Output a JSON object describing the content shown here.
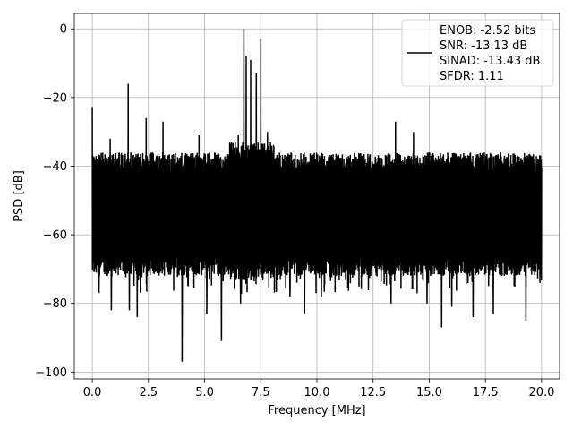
{
  "chart_data": {
    "type": "line",
    "title": "",
    "xlabel": "Frequency [MHz]",
    "ylabel": "PSD [dB]",
    "xlim": [
      -0.8,
      20.8
    ],
    "ylim": [
      -102,
      4.5
    ],
    "grid": true,
    "x_ticks": [
      0.0,
      2.5,
      5.0,
      7.5,
      10.0,
      12.5,
      15.0,
      17.5,
      20.0
    ],
    "x_tick_labels": [
      "0.0",
      "2.5",
      "5.0",
      "7.5",
      "10.0",
      "12.5",
      "15.0",
      "17.5",
      "20.0"
    ],
    "y_ticks": [
      0,
      -20,
      -40,
      -60,
      -80,
      -100
    ],
    "y_tick_labels": [
      "0",
      "−20",
      "−40",
      "−60",
      "−80",
      "−100"
    ],
    "line_color": "#000000",
    "legend": {
      "placement": "upper right",
      "entries": [
        "ENOB: -2.52 bits",
        "SNR: -13.13 dB",
        "SINAD: -13.43 dB",
        "SFDR: 1.11"
      ]
    },
    "series": [
      {
        "x_range": [
          0.0,
          20.0
        ],
        "noise_floor_band": [
          -72,
          -36
        ],
        "noise_floor_band_center": [
          -73,
          -33
        ],
        "spikes": [
          {
            "x": 0.0,
            "y": -23
          },
          {
            "x": 0.8,
            "y": -32
          },
          {
            "x": 1.2,
            "y": -36
          },
          {
            "x": 1.6,
            "y": -16
          },
          {
            "x": 2.0,
            "y": -34
          },
          {
            "x": 2.4,
            "y": -26
          },
          {
            "x": 3.15,
            "y": -27
          },
          {
            "x": 4.75,
            "y": -31
          },
          {
            "x": 6.5,
            "y": -31
          },
          {
            "x": 6.75,
            "y": 0
          },
          {
            "x": 6.85,
            "y": -8
          },
          {
            "x": 7.05,
            "y": -9
          },
          {
            "x": 7.3,
            "y": -13
          },
          {
            "x": 7.5,
            "y": -3
          },
          {
            "x": 7.8,
            "y": -30
          },
          {
            "x": 13.5,
            "y": -27
          },
          {
            "x": 14.3,
            "y": -30
          }
        ],
        "dips": [
          {
            "x": 0.3,
            "y": -77
          },
          {
            "x": 0.85,
            "y": -82
          },
          {
            "x": 1.65,
            "y": -82
          },
          {
            "x": 2.0,
            "y": -84
          },
          {
            "x": 4.0,
            "y": -97
          },
          {
            "x": 5.1,
            "y": -83
          },
          {
            "x": 5.75,
            "y": -91
          },
          {
            "x": 6.6,
            "y": -80
          },
          {
            "x": 8.8,
            "y": -78
          },
          {
            "x": 9.45,
            "y": -83
          },
          {
            "x": 10.2,
            "y": -78
          },
          {
            "x": 13.3,
            "y": -80
          },
          {
            "x": 14.9,
            "y": -80
          },
          {
            "x": 15.55,
            "y": -87
          },
          {
            "x": 16.0,
            "y": -81
          },
          {
            "x": 16.95,
            "y": -84
          },
          {
            "x": 17.85,
            "y": -83
          },
          {
            "x": 19.3,
            "y": -85
          }
        ]
      }
    ]
  }
}
